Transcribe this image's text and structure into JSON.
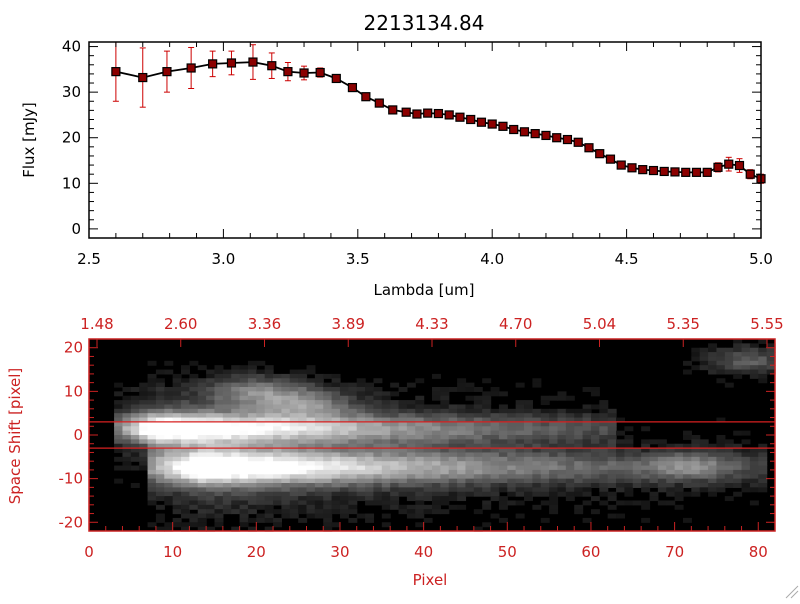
{
  "chart_data": [
    {
      "type": "line",
      "title": "2213134.84",
      "xlabel": "Lambda [um]",
      "ylabel": "Flux [mJy]",
      "xlim": [
        2.5,
        5.0
      ],
      "ylim": [
        -2,
        41
      ],
      "xticks": [
        "2.5",
        "3.0",
        "3.5",
        "4.0",
        "4.5",
        "5.0"
      ],
      "yticks": [
        "0",
        "10",
        "20",
        "30",
        "40"
      ],
      "colors": {
        "line": "#000000",
        "marker_fill": "#8b0000",
        "error_bar": "#cc0000"
      },
      "series": [
        {
          "x": [
            2.6,
            2.7,
            2.79,
            2.88,
            2.96,
            3.03,
            3.11,
            3.18,
            3.24,
            3.3,
            3.36,
            3.42,
            3.48,
            3.53,
            3.58,
            3.63,
            3.68,
            3.72,
            3.76,
            3.8,
            3.84,
            3.88,
            3.92,
            3.96,
            4.0,
            4.04,
            4.08,
            4.12,
            4.16,
            4.2,
            4.24,
            4.28,
            4.32,
            4.36,
            4.4,
            4.44,
            4.48,
            4.52,
            4.56,
            4.6,
            4.64,
            4.68,
            4.72,
            4.76,
            4.8,
            4.84,
            4.88,
            4.92,
            4.96,
            5.0
          ],
          "y": [
            34.5,
            33.2,
            34.5,
            35.3,
            36.2,
            36.4,
            36.6,
            35.8,
            34.5,
            34.2,
            34.3,
            33.0,
            31.0,
            29.0,
            27.6,
            26.1,
            25.6,
            25.2,
            25.4,
            25.3,
            25.0,
            24.5,
            24.0,
            23.4,
            23.0,
            22.5,
            21.8,
            21.3,
            20.9,
            20.5,
            20.0,
            19.6,
            19.0,
            17.8,
            16.5,
            15.3,
            14.0,
            13.4,
            13.0,
            12.8,
            12.6,
            12.5,
            12.4,
            12.4,
            12.4,
            13.5,
            14.2,
            13.9,
            12.0,
            11.0
          ],
          "err": [
            6.5,
            6.5,
            4.5,
            4.5,
            2.8,
            2.6,
            3.8,
            2.8,
            2.0,
            1.5,
            1.0,
            0.5,
            0.5,
            0.5,
            0.5,
            0.5,
            0.5,
            0.5,
            0.5,
            0.5,
            0.5,
            0.5,
            0.5,
            0.5,
            0.5,
            0.5,
            0.5,
            0.5,
            0.5,
            0.5,
            0.5,
            0.5,
            0.5,
            0.5,
            0.5,
            0.5,
            0.5,
            0.5,
            0.5,
            0.5,
            0.5,
            0.5,
            0.5,
            0.5,
            0.5,
            1.0,
            1.5,
            1.5,
            1.0,
            1.0
          ]
        }
      ]
    },
    {
      "type": "heatmap",
      "xlabel": "Pixel",
      "ylabel": "Space Shift [pixel]",
      "xlim": [
        0,
        82
      ],
      "ylim": [
        -22,
        22
      ],
      "xticks": [
        "0",
        "10",
        "20",
        "30",
        "40",
        "50",
        "60",
        "70",
        "80"
      ],
      "yticks": [
        "20",
        "10",
        "0",
        "-10",
        "-20"
      ],
      "top_axis_ticks": [
        "1.48",
        "2.60",
        "3.36",
        "3.89",
        "4.33",
        "4.70",
        "5.04",
        "5.35",
        "5.55"
      ],
      "extraction_aperture": [
        -3,
        3
      ],
      "colors": {
        "axis": "#cc2222",
        "aperture_line": "#d82020",
        "background": "#000000"
      },
      "traces": [
        {
          "center": 1.5,
          "width": 2.2,
          "start_x": 3,
          "peak_x": 8,
          "peak": 1.0,
          "decay": 33,
          "end_x": 63
        },
        {
          "center": -7.5,
          "width": 2.6,
          "start_x": 7,
          "peak_x": 14,
          "peak": 1.0,
          "decay": 38,
          "end_x": 81
        }
      ],
      "blobs": [
        {
          "x": 20,
          "y": 10,
          "amp": 0.4
        },
        {
          "x": 26,
          "y": 7,
          "amp": 0.38
        },
        {
          "x": 72,
          "y": -7,
          "amp": 0.3
        },
        {
          "x": 79,
          "y": 17,
          "amp": 0.35
        }
      ]
    }
  ]
}
